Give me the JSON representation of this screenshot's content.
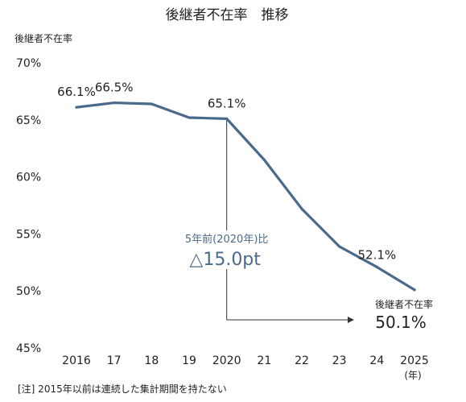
{
  "chart_data": {
    "type": "line",
    "title": "後継者不在率　推移",
    "ylabel": "後継者不在率",
    "x_unit": "(年)",
    "categories": [
      "2016",
      "17",
      "18",
      "19",
      "2020",
      "21",
      "22",
      "23",
      "24",
      "2025"
    ],
    "ylim": [
      45,
      70
    ],
    "y_ticks": [
      45,
      50,
      55,
      60,
      65,
      70
    ],
    "y_tick_labels": [
      "45%",
      "50%",
      "55%",
      "60%",
      "65%",
      "70%"
    ],
    "series": [
      {
        "values": [
          66.1,
          66.5,
          66.4,
          65.2,
          65.1,
          61.5,
          57.2,
          53.9,
          52.1,
          50.1
        ],
        "color": "#4a6a8c"
      }
    ],
    "data_labels": [
      {
        "index": 0,
        "text": "66.1%"
      },
      {
        "index": 1,
        "text": "66.5%"
      },
      {
        "index": 4,
        "text": "65.1%"
      },
      {
        "index": 8,
        "text": "52.1%"
      }
    ],
    "annotation": {
      "line1": "5年前(2020年)比",
      "line2": "△15.0pt",
      "color": "#4a6a8c"
    },
    "end_label": {
      "caption": "後継者不在率",
      "value": "50.1%"
    },
    "grid": false,
    "footnote": "[注] 2015年以前は連続した集計期間を持たない"
  }
}
